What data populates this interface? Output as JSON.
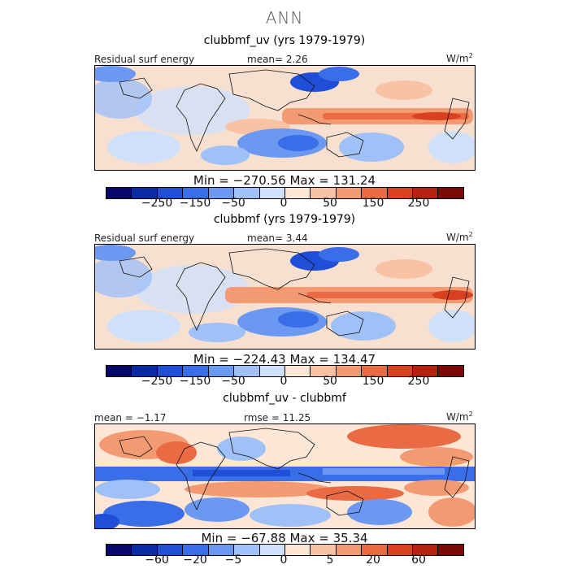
{
  "figure": {
    "title": "ANN"
  },
  "colors": {
    "scale": [
      "#08086b",
      "#0b2aa8",
      "#1f4fd8",
      "#3a6ee8",
      "#6b99f2",
      "#9fc1f7",
      "#cfe0fa",
      "#fde6d6",
      "#f9c2a4",
      "#f39a73",
      "#ea6a43",
      "#d9401f",
      "#b7220f",
      "#7a0a05"
    ],
    "land_outline": "#111111",
    "background": "#f7e0cf"
  },
  "panels": [
    {
      "title": "clubbmf_uv (yrs 1979-1979)",
      "left_label": "Residual surf energy",
      "center_label": "mean=   2.26",
      "right_label": "W/m",
      "units_exp": "2",
      "minmax": "Min = −270.56 Max = 131.24",
      "ticks": [
        "−250",
        "−150",
        "−50",
        "0",
        "50",
        "150",
        "250"
      ]
    },
    {
      "title": "clubbmf (yrs 1979-1979)",
      "left_label": "Residual surf energy",
      "center_label": "mean=   3.44",
      "right_label": "W/m",
      "units_exp": "2",
      "minmax": "Min = −224.43 Max = 134.47",
      "ticks": [
        "−250",
        "−150",
        "−50",
        "0",
        "50",
        "150",
        "250"
      ]
    },
    {
      "title": "clubbmf_uv - clubbmf",
      "left_label": "mean =  −1.17",
      "center_label": "rmse =  11.25",
      "right_label": "W/m",
      "units_exp": "2",
      "minmax": "Min = −67.88 Max =  35.34",
      "ticks": [
        "−60",
        "−20",
        "−5",
        "0",
        "5",
        "20",
        "60"
      ]
    }
  ]
}
